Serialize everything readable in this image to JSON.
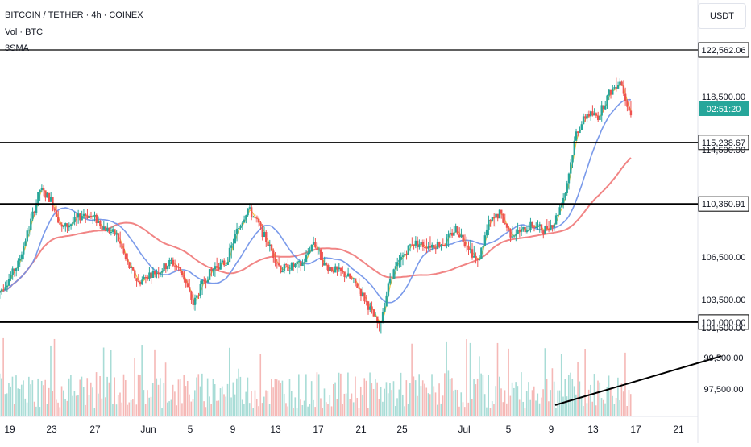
{
  "header": {
    "symbol": "BITCOIN / TETHER · 4h · COINEX",
    "volume": "Vol · BTC",
    "ma": "3SMA",
    "currency": "USDT"
  },
  "colors": {
    "up": "#26a69a",
    "down": "#ef5350",
    "ma_fast": "#f2c230",
    "ma_mid": "#6b8fe8",
    "ma_slow": "#ef7878",
    "level_line": "#000000",
    "countdown_bg": "#26a69a"
  },
  "price_scale": {
    "ticks": [
      "118,500.00",
      "114,500.00",
      "106,500.00",
      "103,500.00",
      "101,500.00",
      "99,500.00",
      "97,500.00"
    ],
    "level_labels": [
      "122,562.06",
      "115,238.67",
      "110,360.91",
      "101,000.00"
    ],
    "countdown": "02:51:20"
  },
  "time_axis": {
    "labels": [
      "19",
      "23",
      "27",
      "Jun",
      "5",
      "9",
      "13",
      "17",
      "21",
      "25",
      "Jul",
      "5",
      "9",
      "13",
      "17",
      "21"
    ]
  },
  "chart_data": {
    "type": "candlestick",
    "symbol": "BITCOIN / TETHER",
    "timeframe": "4h",
    "exchange": "COINEX",
    "horizontal_levels": [
      122562.06,
      115238.67,
      110360.91,
      101000.0
    ],
    "trendline": {
      "from": {
        "date": "Jul 8",
        "price": 97300
      },
      "to": {
        "date": "Jul 21",
        "price": 99200
      }
    },
    "x_ticks": [
      "19",
      "23",
      "27",
      "Jun",
      "5",
      "9",
      "13",
      "17",
      "21",
      "25",
      "Jul",
      "5",
      "9",
      "13",
      "17",
      "21"
    ],
    "close_path": [
      {
        "date": "May 18",
        "price": 103100
      },
      {
        "date": "May 19",
        "price": 104200
      },
      {
        "date": "May 20",
        "price": 105600
      },
      {
        "date": "May 21",
        "price": 108500
      },
      {
        "date": "May 22",
        "price": 111500
      },
      {
        "date": "May 23",
        "price": 110700
      },
      {
        "date": "May 24",
        "price": 108400
      },
      {
        "date": "May 25",
        "price": 108900
      },
      {
        "date": "May 26",
        "price": 109600
      },
      {
        "date": "May 27",
        "price": 109200
      },
      {
        "date": "May 28",
        "price": 108400
      },
      {
        "date": "May 29",
        "price": 107900
      },
      {
        "date": "May 30",
        "price": 105600
      },
      {
        "date": "May 31",
        "price": 104100
      },
      {
        "date": "Jun 1",
        "price": 104800
      },
      {
        "date": "Jun 2",
        "price": 105100
      },
      {
        "date": "Jun 3",
        "price": 105800
      },
      {
        "date": "Jun 4",
        "price": 104900
      },
      {
        "date": "Jun 5",
        "price": 102400
      },
      {
        "date": "Jun 6",
        "price": 104300
      },
      {
        "date": "Jun 7",
        "price": 105400
      },
      {
        "date": "Jun 8",
        "price": 105700
      },
      {
        "date": "Jun 9",
        "price": 108200
      },
      {
        "date": "Jun 10",
        "price": 110000
      },
      {
        "date": "Jun 11",
        "price": 108700
      },
      {
        "date": "Jun 12",
        "price": 106900
      },
      {
        "date": "Jun 13",
        "price": 105200
      },
      {
        "date": "Jun 14",
        "price": 105400
      },
      {
        "date": "Jun 15",
        "price": 105600
      },
      {
        "date": "Jun 16",
        "price": 107400
      },
      {
        "date": "Jun 17",
        "price": 105500
      },
      {
        "date": "Jun 18",
        "price": 105100
      },
      {
        "date": "Jun 19",
        "price": 104700
      },
      {
        "date": "Jun 20",
        "price": 103900
      },
      {
        "date": "Jun 21",
        "price": 102300
      },
      {
        "date": "Jun 22",
        "price": 100600
      },
      {
        "date": "Jun 23",
        "price": 104500
      },
      {
        "date": "Jun 24",
        "price": 106000
      },
      {
        "date": "Jun 25",
        "price": 107300
      },
      {
        "date": "Jun 26",
        "price": 107100
      },
      {
        "date": "Jun 27",
        "price": 107100
      },
      {
        "date": "Jun 28",
        "price": 107300
      },
      {
        "date": "Jun 29",
        "price": 108400
      },
      {
        "date": "Jun 30",
        "price": 107200
      },
      {
        "date": "Jul 1",
        "price": 105700
      },
      {
        "date": "Jul 2",
        "price": 108800
      },
      {
        "date": "Jul 3",
        "price": 109600
      },
      {
        "date": "Jul 4",
        "price": 108000
      },
      {
        "date": "Jul 5",
        "price": 108200
      },
      {
        "date": "Jul 6",
        "price": 108700
      },
      {
        "date": "Jul 7",
        "price": 108300
      },
      {
        "date": "Jul 8",
        "price": 108900
      },
      {
        "date": "Jul 9",
        "price": 111300
      },
      {
        "date": "Jul 10",
        "price": 116000
      },
      {
        "date": "Jul 11",
        "price": 117500
      },
      {
        "date": "Jul 12",
        "price": 117300
      },
      {
        "date": "Jul 13",
        "price": 119100
      },
      {
        "date": "Jul 14",
        "price": 120200
      },
      {
        "date": "Jul 15",
        "price": 117400
      }
    ],
    "moving_averages": [
      {
        "color": "yellow",
        "note": "fast, tracks close"
      },
      {
        "color": "blue",
        "note": "mid period"
      },
      {
        "color": "red",
        "note": "slow period"
      }
    ]
  }
}
